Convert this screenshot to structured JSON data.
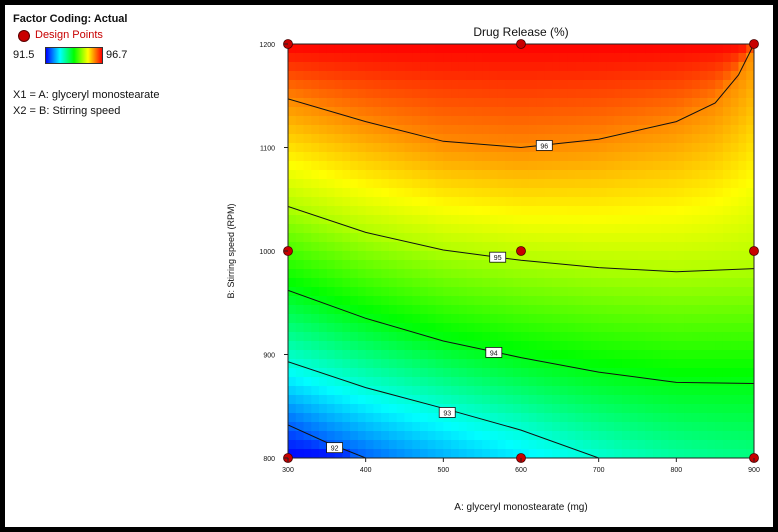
{
  "legend": {
    "factor_coding": "Factor Coding: Actual",
    "design_points_label": "Design Points",
    "design_points_color": "#c80000",
    "scale_min": "91.5",
    "scale_max": "96.7",
    "x1_label": "X1 = A: glyceryl monostearate",
    "x2_label": "X2 = B: Stirring speed"
  },
  "chart_data": {
    "type": "contour",
    "title": "Drug Release (%)",
    "xlabel": "A: glyceryl monostearate (mg)",
    "ylabel": "B: Stirring speed (RPM)",
    "xlim": [
      300,
      900
    ],
    "ylim": [
      800,
      1200
    ],
    "x_ticks": [
      300,
      400,
      500,
      600,
      700,
      800,
      900
    ],
    "y_ticks": [
      800,
      900,
      1000,
      1100,
      1200
    ],
    "response_range": [
      91.5,
      96.7
    ],
    "colormap": [
      "#0000ff",
      "#00ffff",
      "#00ff00",
      "#ffff00",
      "#ff0000"
    ],
    "contours": [
      {
        "level": "92",
        "label_at": [
          360,
          810
        ],
        "points": [
          [
            300,
            832
          ],
          [
            350,
            815
          ],
          [
            400,
            800
          ]
        ]
      },
      {
        "level": "93",
        "label_at": [
          505,
          844
        ],
        "points": [
          [
            300,
            893
          ],
          [
            400,
            868
          ],
          [
            500,
            848
          ],
          [
            600,
            827
          ],
          [
            700,
            800
          ]
        ]
      },
      {
        "level": "94",
        "label_at": [
          565,
          902
        ],
        "points": [
          [
            300,
            962
          ],
          [
            400,
            935
          ],
          [
            500,
            913
          ],
          [
            600,
            897
          ],
          [
            700,
            883
          ],
          [
            800,
            873
          ],
          [
            900,
            872
          ]
        ]
      },
      {
        "level": "95",
        "label_at": [
          570,
          994
        ],
        "points": [
          [
            300,
            1043
          ],
          [
            400,
            1018
          ],
          [
            500,
            1001
          ],
          [
            600,
            991
          ],
          [
            700,
            984
          ],
          [
            800,
            980
          ],
          [
            900,
            983
          ]
        ]
      },
      {
        "level": "96",
        "label_at": [
          630,
          1102
        ],
        "points": [
          [
            300,
            1147
          ],
          [
            400,
            1125
          ],
          [
            500,
            1106
          ],
          [
            600,
            1100
          ],
          [
            700,
            1108
          ],
          [
            800,
            1125
          ],
          [
            850,
            1143
          ],
          [
            880,
            1170
          ],
          [
            900,
            1200
          ]
        ]
      }
    ],
    "design_points": [
      {
        "x": 300,
        "y": 1200
      },
      {
        "x": 600,
        "y": 1200
      },
      {
        "x": 900,
        "y": 1200
      },
      {
        "x": 300,
        "y": 1000
      },
      {
        "x": 600,
        "y": 1000
      },
      {
        "x": 900,
        "y": 1000
      },
      {
        "x": 300,
        "y": 800
      },
      {
        "x": 600,
        "y": 800
      },
      {
        "x": 900,
        "y": 800
      }
    ]
  }
}
